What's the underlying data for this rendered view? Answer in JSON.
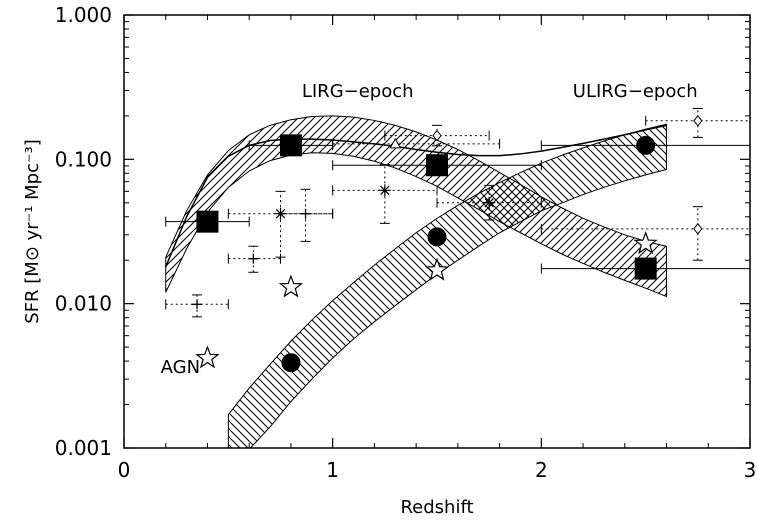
{
  "chart_data": {
    "type": "scatter",
    "xlabel": "Redshift",
    "ylabel": "SFR [M⊙ yr⁻¹ Mpc⁻³]",
    "xlim": [
      0,
      3
    ],
    "ylim": [
      0.001,
      1.0
    ],
    "yscale": "log",
    "xticks": [
      0,
      1,
      2,
      3
    ],
    "xtick_labels": [
      "0",
      "1",
      "2",
      "3"
    ],
    "yticks": [
      0.001,
      0.01,
      0.1,
      1.0
    ],
    "ytick_labels": [
      "0.001",
      "0.010",
      "0.100",
      "1.000"
    ],
    "grid": false,
    "annotations": [
      {
        "text": "LIRG−epoch",
        "x": 1.12,
        "y": 0.27
      },
      {
        "text": "ULIRG−epoch",
        "x": 2.45,
        "y": 0.27
      },
      {
        "text": "AGN",
        "x": 0.27,
        "y": 0.0033
      }
    ],
    "series": [
      {
        "marker": "filled-square",
        "points": [
          {
            "x": 0.4,
            "y": 0.037,
            "xerr": [
              0.2,
              0.6
            ]
          },
          {
            "x": 0.8,
            "y": 0.125,
            "xerr": [
              0.6,
              1.0
            ]
          },
          {
            "x": 1.5,
            "y": 0.091,
            "xerr": [
              1.0,
              2.0
            ]
          },
          {
            "x": 2.5,
            "y": 0.0175,
            "xerr": [
              2.0,
              3.0
            ]
          }
        ]
      },
      {
        "marker": "filled-circle",
        "points": [
          {
            "x": 0.8,
            "y": 0.0039
          },
          {
            "x": 1.5,
            "y": 0.029
          },
          {
            "x": 2.5,
            "y": 0.125,
            "xerr": [
              2.0,
              3.0
            ]
          }
        ]
      },
      {
        "marker": "open-star",
        "points": [
          {
            "x": 0.4,
            "y": 0.0042
          },
          {
            "x": 0.8,
            "y": 0.013
          },
          {
            "x": 1.5,
            "y": 0.017
          },
          {
            "x": 2.5,
            "y": 0.026
          }
        ]
      },
      {
        "marker": "plus",
        "points": [
          {
            "x": 0.35,
            "y": 0.0099,
            "xerr": [
              0.2,
              0.5
            ],
            "yerr": [
              0.0081,
              0.0115
            ]
          },
          {
            "x": 0.62,
            "y": 0.0205,
            "xerr": [
              0.5,
              0.75
            ],
            "yerr": [
              0.0165,
              0.025
            ]
          },
          {
            "x": 0.87,
            "y": 0.042,
            "xerr": [
              0.75,
              1.0
            ],
            "yerr": [
              0.027,
              0.062
            ]
          }
        ]
      },
      {
        "marker": "asterisk",
        "points": [
          {
            "x": 0.75,
            "y": 0.042,
            "xerr": [
              0.5,
              1.0
            ],
            "yerr": [
              0.021,
              0.06
            ]
          },
          {
            "x": 1.25,
            "y": 0.061,
            "xerr": [
              1.0,
              1.5
            ],
            "yerr": [
              0.036,
              0.092
            ]
          },
          {
            "x": 1.75,
            "y": 0.05,
            "xerr": [
              1.5,
              2.0
            ],
            "yerr": [
              0.038,
              0.066
            ]
          }
        ]
      },
      {
        "marker": "open-diamond",
        "points": [
          {
            "x": 1.5,
            "y": 0.146,
            "xerr": [
              1.25,
              1.75
            ],
            "yerr": [
              0.124,
              0.172
            ]
          },
          {
            "x": 2.75,
            "y": 0.185,
            "xerr": [
              2.5,
              3.0
            ],
            "yerr": [
              0.142,
              0.225
            ]
          },
          {
            "x": 2.75,
            "y": 0.033,
            "xerr": [
              2.0,
              3.0
            ],
            "yerr": [
              0.02,
              0.047
            ]
          }
        ]
      },
      {
        "marker": "open-triangle",
        "points": [
          {
            "x": 1.3,
            "y": 0.128,
            "xerr": [
              1.0,
              1.8
            ]
          }
        ]
      }
    ],
    "bands": [
      {
        "name": "",
        "hatch": "forward",
        "upper": [
          [
            0.2,
            0.021
          ],
          [
            0.3,
            0.044
          ],
          [
            0.4,
            0.078
          ],
          [
            0.5,
            0.115
          ],
          [
            0.6,
            0.148
          ],
          [
            0.7,
            0.172
          ],
          [
            0.8,
            0.188
          ],
          [
            0.9,
            0.198
          ],
          [
            1.0,
            0.2
          ],
          [
            1.1,
            0.196
          ],
          [
            1.2,
            0.186
          ],
          [
            1.3,
            0.172
          ],
          [
            1.4,
            0.155
          ],
          [
            1.5,
            0.136
          ],
          [
            1.6,
            0.117
          ],
          [
            1.7,
            0.098
          ],
          [
            1.8,
            0.081
          ],
          [
            1.9,
            0.067
          ],
          [
            2.0,
            0.055
          ],
          [
            2.1,
            0.046
          ],
          [
            2.2,
            0.039
          ],
          [
            2.3,
            0.034
          ],
          [
            2.4,
            0.03
          ],
          [
            2.5,
            0.027
          ],
          [
            2.6,
            0.025
          ]
        ],
        "lower": [
          [
            0.2,
            0.012
          ],
          [
            0.3,
            0.024
          ],
          [
            0.4,
            0.043
          ],
          [
            0.5,
            0.064
          ],
          [
            0.6,
            0.083
          ],
          [
            0.7,
            0.098
          ],
          [
            0.8,
            0.107
          ],
          [
            0.9,
            0.111
          ],
          [
            1.0,
            0.11
          ],
          [
            1.1,
            0.105
          ],
          [
            1.2,
            0.097
          ],
          [
            1.3,
            0.087
          ],
          [
            1.4,
            0.076
          ],
          [
            1.5,
            0.065
          ],
          [
            1.6,
            0.054
          ],
          [
            1.7,
            0.045
          ],
          [
            1.8,
            0.037
          ],
          [
            1.9,
            0.031
          ],
          [
            2.0,
            0.026
          ],
          [
            2.1,
            0.022
          ],
          [
            2.2,
            0.019
          ],
          [
            2.3,
            0.0165
          ],
          [
            2.4,
            0.0145
          ],
          [
            2.5,
            0.0128
          ],
          [
            2.6,
            0.0112
          ]
        ]
      },
      {
        "name": "",
        "hatch": "backward",
        "upper": [
          [
            0.5,
            0.0017
          ],
          [
            0.6,
            0.0026
          ],
          [
            0.7,
            0.0038
          ],
          [
            0.8,
            0.0055
          ],
          [
            0.9,
            0.0077
          ],
          [
            1.0,
            0.0105
          ],
          [
            1.1,
            0.014
          ],
          [
            1.2,
            0.0185
          ],
          [
            1.3,
            0.024
          ],
          [
            1.4,
            0.031
          ],
          [
            1.5,
            0.039
          ],
          [
            1.6,
            0.048
          ],
          [
            1.7,
            0.058
          ],
          [
            1.8,
            0.069
          ],
          [
            1.9,
            0.081
          ],
          [
            2.0,
            0.094
          ],
          [
            2.1,
            0.107
          ],
          [
            2.2,
            0.12
          ],
          [
            2.3,
            0.134
          ],
          [
            2.4,
            0.148
          ],
          [
            2.5,
            0.162
          ],
          [
            2.6,
            0.175
          ]
        ],
        "lower": [
          [
            0.5,
            0.00065
          ],
          [
            0.6,
            0.00098
          ],
          [
            0.7,
            0.0014
          ],
          [
            0.8,
            0.0021
          ],
          [
            0.9,
            0.003
          ],
          [
            1.0,
            0.0042
          ],
          [
            1.1,
            0.0057
          ],
          [
            1.2,
            0.0075
          ],
          [
            1.3,
            0.0097
          ],
          [
            1.4,
            0.0125
          ],
          [
            1.5,
            0.016
          ],
          [
            1.6,
            0.02
          ],
          [
            1.7,
            0.025
          ],
          [
            1.8,
            0.031
          ],
          [
            1.9,
            0.037
          ],
          [
            2.0,
            0.044
          ],
          [
            2.1,
            0.05
          ],
          [
            2.2,
            0.057
          ],
          [
            2.3,
            0.064
          ],
          [
            2.4,
            0.071
          ],
          [
            2.5,
            0.078
          ],
          [
            2.6,
            0.085
          ]
        ]
      }
    ],
    "lines": [
      {
        "name": "",
        "points": [
          [
            0.2,
            0.018
          ],
          [
            0.3,
            0.04
          ],
          [
            0.4,
            0.075
          ],
          [
            0.5,
            0.105
          ],
          [
            0.6,
            0.125
          ],
          [
            0.7,
            0.135
          ],
          [
            0.8,
            0.138
          ],
          [
            0.9,
            0.138
          ],
          [
            1.0,
            0.136
          ],
          [
            1.1,
            0.132
          ],
          [
            1.2,
            0.128
          ],
          [
            1.3,
            0.123
          ],
          [
            1.4,
            0.117
          ],
          [
            1.5,
            0.112
          ],
          [
            1.6,
            0.108
          ],
          [
            1.7,
            0.106
          ],
          [
            1.8,
            0.106
          ],
          [
            1.9,
            0.109
          ],
          [
            2.0,
            0.114
          ],
          [
            2.1,
            0.121
          ],
          [
            2.2,
            0.129
          ],
          [
            2.3,
            0.138
          ],
          [
            2.4,
            0.148
          ],
          [
            2.5,
            0.16
          ],
          [
            2.6,
            0.172
          ]
        ]
      }
    ]
  }
}
